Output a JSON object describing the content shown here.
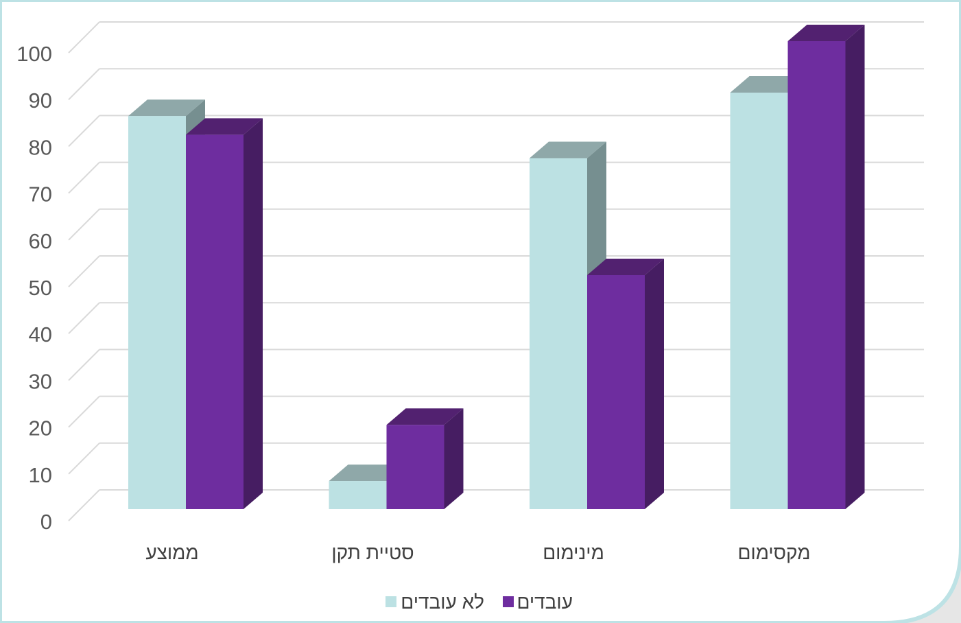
{
  "chart_data": {
    "type": "bar",
    "categories": [
      "ממוצע",
      "סטיית תקן",
      "מינימום",
      "מקסימום"
    ],
    "series": [
      {
        "name": "לא עובדים",
        "values": [
          84,
          6,
          75,
          89
        ]
      },
      {
        "name": "עובדים",
        "values": [
          80,
          18,
          50,
          100
        ]
      }
    ],
    "title": "",
    "xlabel": "",
    "ylabel": "",
    "ylim": [
      0,
      100
    ],
    "yticks": [
      "0",
      "10",
      "20",
      "30",
      "40",
      "50",
      "60",
      "70",
      "80",
      "90",
      "100"
    ],
    "grid": true,
    "legend": "bottom",
    "style": "3d-clustered-column"
  },
  "colors": {
    "series_front": [
      "#bce1e3",
      "#6e2d9f"
    ],
    "series_top": [
      "#8fa8a9",
      "#522170"
    ],
    "series_side": [
      "#768f90",
      "#461d62"
    ],
    "gridline": "#d9d9d9",
    "tick_text": "#595959",
    "plot_background": "#ffffff",
    "frame_background": "#e6e6e6",
    "frame_border": "#bde2e5"
  }
}
